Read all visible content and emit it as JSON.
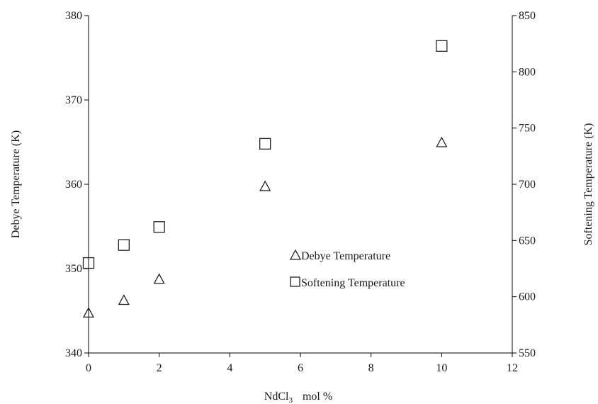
{
  "chart_data": {
    "type": "scatter",
    "xlabel": "NdCl",
    "xlabel_subscript": "3",
    "xlabel_unit": "mol %",
    "ylabel": "Debye Temperature  (K)",
    "y2label": "Softening Temperature (K)",
    "xlim": [
      0,
      12
    ],
    "ylim": [
      340,
      380
    ],
    "y2lim": [
      550,
      850
    ],
    "x_ticks": [
      "0",
      "2",
      "4",
      "6",
      "8",
      "10",
      "12"
    ],
    "y_ticks": [
      "340",
      "350",
      "360",
      "370",
      "380"
    ],
    "y2_ticks": [
      "550",
      "600",
      "650",
      "700",
      "750",
      "800",
      "850"
    ],
    "grid": false,
    "legend_position": "center-right",
    "series": [
      {
        "name": "Debye Temperature",
        "marker": "triangle",
        "axis": "left",
        "x": [
          0,
          1,
          2,
          5,
          10
        ],
        "y": [
          344.8,
          346.3,
          348.8,
          359.8,
          365.0
        ]
      },
      {
        "name": "Softening Temperature",
        "marker": "square",
        "axis": "right",
        "x": [
          0,
          1,
          2,
          5,
          10
        ],
        "y": [
          630,
          646,
          662,
          736,
          823
        ]
      }
    ]
  }
}
